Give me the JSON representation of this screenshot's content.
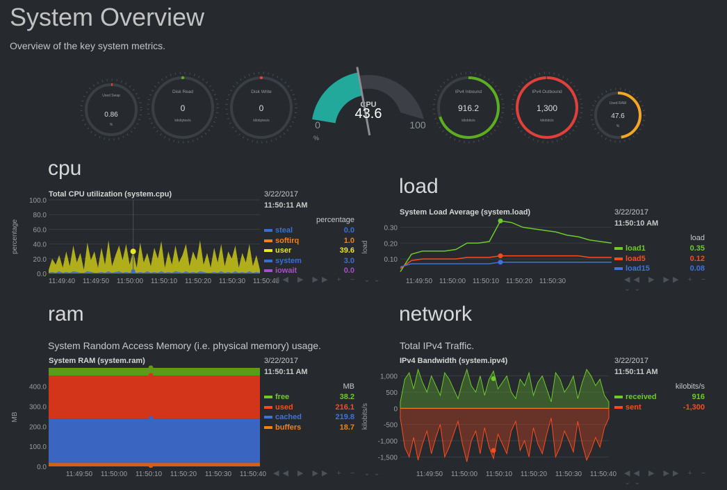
{
  "page": {
    "title": "System Overview",
    "subtitle": "Overview of the key system metrics."
  },
  "gauges": {
    "swap": {
      "label": "Used Swap",
      "value": "0.86",
      "unit": "%",
      "fraction": 0.0086,
      "color": "#e0403a"
    },
    "diskr": {
      "label": "Disk Read",
      "value": "0",
      "unit": "kilobytes/s",
      "fraction": 0,
      "color": "#5cae20"
    },
    "diskw": {
      "label": "Disk Write",
      "value": "0",
      "unit": "kilobytes/s",
      "fraction": 0,
      "color": "#e0403a"
    },
    "cpu": {
      "label": "CPU",
      "value": "43.6",
      "min": "0",
      "max": "100",
      "unit": "%",
      "fraction": 0.436,
      "color": "#22a99c"
    },
    "ipv4in": {
      "label": "IPv4 Inbound",
      "value": "916.2",
      "unit": "kilobits/s",
      "fraction": 0.7,
      "color": "#5cae20"
    },
    "ipv4out": {
      "label": "IPv4 Outbound",
      "value": "1,300",
      "unit": "kilobits/s",
      "fraction": 0.995,
      "color": "#e0403a"
    },
    "ram": {
      "label": "Used RAM",
      "value": "47.6",
      "unit": "%",
      "fraction": 0.476,
      "color": "#f5a623"
    }
  },
  "cpu": {
    "heading": "cpu",
    "chart_title": "Total CPU utilization (system.cpu)",
    "date": "3/22/2017",
    "time": "11:50:11 AM",
    "unit": "percentage",
    "ylabel": "percentage",
    "legend": [
      {
        "name": "steal",
        "value": "0.0",
        "color": "#3a6fd2"
      },
      {
        "name": "softirq",
        "value": "1.0",
        "color": "#f2801c"
      },
      {
        "name": "user",
        "value": "39.6",
        "color": "#e8e52a"
      },
      {
        "name": "system",
        "value": "3.0",
        "color": "#3a6fd2"
      },
      {
        "name": "iowait",
        "value": "0.0",
        "color": "#a74ecf"
      }
    ]
  },
  "load": {
    "heading": "load",
    "chart_title": "System Load Average (system.load)",
    "date": "3/22/2017",
    "time": "11:50:10 AM",
    "unit": "load",
    "ylabel": "load",
    "legend": [
      {
        "name": "load1",
        "value": "0.35",
        "color": "#6ecb2a"
      },
      {
        "name": "load5",
        "value": "0.12",
        "color": "#ff4a1c"
      },
      {
        "name": "load15",
        "value": "0.08",
        "color": "#3e73dc"
      }
    ]
  },
  "ram": {
    "heading": "ram",
    "subtitle": "System Random Access Memory (i.e. physical memory) usage.",
    "chart_title": "System RAM (system.ram)",
    "date": "3/22/2017",
    "time": "11:50:11 AM",
    "unit": "MB",
    "ylabel": "MB",
    "legend": [
      {
        "name": "free",
        "value": "38.2",
        "color": "#6ecb2a"
      },
      {
        "name": "used",
        "value": "216.1",
        "color": "#ff4a1c"
      },
      {
        "name": "cached",
        "value": "219.8",
        "color": "#3e73dc"
      },
      {
        "name": "buffers",
        "value": "18.7",
        "color": "#f2801c"
      }
    ]
  },
  "network": {
    "heading": "network",
    "subtitle": "Total IPv4 Traffic.",
    "chart_title": "IPv4 Bandwidth (system.ipv4)",
    "date": "3/22/2017",
    "time": "11:50:11 AM",
    "unit": "kilobits/s",
    "ylabel": "kilobits/s",
    "legend": [
      {
        "name": "received",
        "value": "916",
        "color": "#6ecb2a"
      },
      {
        "name": "sent",
        "value": "-1,300",
        "color": "#ff4a1c"
      }
    ]
  },
  "toolbar": {
    "glyphs": "◀◀ ▶ ▶▶ + − ⌄⌄"
  },
  "chart_data": [
    {
      "type": "area",
      "title": "Total CPU utilization (system.cpu)",
      "ylabel": "percentage",
      "ylim": [
        0,
        100
      ],
      "yticks": [
        "100.0",
        "80.0",
        "60.0",
        "40.0",
        "20.0",
        "0.0"
      ],
      "xticks": [
        "11:49:40",
        "11:49:50",
        "11:50:00",
        "11:50:10",
        "11:50:20",
        "11:50:30",
        "11:50:40"
      ],
      "series": [
        {
          "name": "user",
          "color": "#c9c618",
          "values": [
            5,
            20,
            12,
            25,
            8,
            30,
            10,
            38,
            15,
            28,
            5,
            42,
            18,
            30,
            8,
            35,
            12,
            45,
            10,
            25,
            38,
            18,
            40,
            12,
            30,
            8,
            42,
            15,
            28,
            10,
            35,
            20,
            44,
            8,
            30,
            12,
            38,
            15,
            25,
            40,
            10,
            30,
            18,
            45,
            12,
            28,
            8,
            35,
            15,
            40,
            10,
            30,
            20,
            38,
            8,
            28,
            15,
            40,
            10,
            25,
            5
          ]
        },
        {
          "name": "system",
          "color": "#3a6fd2",
          "values": [
            1,
            2,
            1,
            3,
            1,
            2,
            1,
            3,
            2,
            1,
            1,
            3,
            2,
            1,
            1,
            2,
            1,
            3,
            1,
            2,
            3,
            1,
            2,
            1,
            3,
            1,
            2,
            1,
            3,
            1,
            2,
            1,
            3,
            1,
            2,
            1,
            3,
            2,
            1,
            3,
            1,
            2,
            1,
            3,
            2,
            1,
            1,
            2,
            1,
            3,
            1,
            2,
            1,
            3,
            1,
            2,
            1,
            3,
            1,
            2,
            1
          ]
        }
      ]
    },
    {
      "type": "line",
      "title": "System Load Average (system.load)",
      "ylabel": "load",
      "ylim": [
        0,
        0.35
      ],
      "yticks": [
        "0.30",
        "0.20",
        "0.10"
      ],
      "xticks": [
        "11:49:50",
        "11:50:00",
        "11:50:10",
        "11:50:20",
        "11:50:30"
      ],
      "series": [
        {
          "name": "load1",
          "color": "#6ecb2a",
          "values": [
            0.02,
            0.13,
            0.15,
            0.15,
            0.15,
            0.16,
            0.2,
            0.2,
            0.21,
            0.34,
            0.33,
            0.3,
            0.29,
            0.28,
            0.27,
            0.25,
            0.24,
            0.22,
            0.21,
            0.2
          ]
        },
        {
          "name": "load5",
          "color": "#ff4a1c",
          "values": [
            0.04,
            0.09,
            0.1,
            0.1,
            0.1,
            0.1,
            0.11,
            0.11,
            0.11,
            0.12,
            0.12,
            0.12,
            0.12,
            0.12,
            0.12,
            0.12,
            0.12,
            0.11,
            0.11,
            0.11
          ]
        },
        {
          "name": "load15",
          "color": "#3e73dc",
          "values": [
            0.05,
            0.07,
            0.07,
            0.07,
            0.07,
            0.07,
            0.07,
            0.07,
            0.07,
            0.08,
            0.08,
            0.08,
            0.08,
            0.08,
            0.08,
            0.08,
            0.08,
            0.08,
            0.08,
            0.08
          ]
        }
      ]
    },
    {
      "type": "area",
      "title": "System RAM (system.ram)",
      "ylabel": "MB",
      "ylim": [
        0,
        492.8
      ],
      "yticks": [
        "400.0",
        "300.0",
        "200.0",
        "100.0",
        "0.0"
      ],
      "xticks": [
        "11:49:50",
        "11:50:00",
        "11:50:10",
        "11:50:20",
        "11:50:30",
        "11:50:40"
      ],
      "stacked": [
        {
          "name": "buffers",
          "color": "#d3620f",
          "value": 18.7
        },
        {
          "name": "cached",
          "color": "#3a65c0",
          "value": 219.8
        },
        {
          "name": "used",
          "color": "#d3351b",
          "value": 216.1
        },
        {
          "name": "free",
          "color": "#5c9a1a",
          "value": 38.2
        }
      ]
    },
    {
      "type": "area",
      "title": "IPv4 Bandwidth (system.ipv4)",
      "ylabel": "kilobits/s",
      "ylim": [
        -1750,
        1250
      ],
      "yticks": [
        "1,000",
        "500",
        "0",
        "-500",
        "-1,000",
        "-1,500"
      ],
      "xticks": [
        "11:49:50",
        "11:50:00",
        "11:50:10",
        "11:50:20",
        "11:50:30",
        "11:50:40"
      ],
      "series": [
        {
          "name": "received",
          "color": "#6ecb2a",
          "values": [
            200,
            900,
            1100,
            600,
            1200,
            800,
            500,
            1000,
            700,
            400,
            1100,
            900,
            600,
            300,
            800,
            1200,
            700,
            500,
            1000,
            400,
            900,
            1150,
            600,
            800,
            1000,
            500,
            300,
            900,
            700,
            1100,
            400,
            800,
            1000,
            600,
            200,
            1100,
            900,
            500,
            700,
            1000,
            300,
            800,
            1200,
            1000,
            700,
            900,
            400,
            200
          ]
        },
        {
          "name": "sent",
          "color": "#ff4a1c",
          "values": [
            -300,
            -1200,
            -1500,
            -900,
            -1600,
            -1100,
            -700,
            -1400,
            -900,
            -500,
            -1500,
            -1200,
            -800,
            -400,
            -1100,
            -1650,
            -1000,
            -700,
            -1400,
            -600,
            -1200,
            -1550,
            -800,
            -1100,
            -1400,
            -700,
            -400,
            -1300,
            -1000,
            -1500,
            -600,
            -1100,
            -1400,
            -800,
            -300,
            -1500,
            -1200,
            -700,
            -1000,
            -1350,
            -400,
            -1100,
            -1600,
            -1300,
            -900,
            -1200,
            -600,
            -300
          ]
        }
      ]
    }
  ]
}
